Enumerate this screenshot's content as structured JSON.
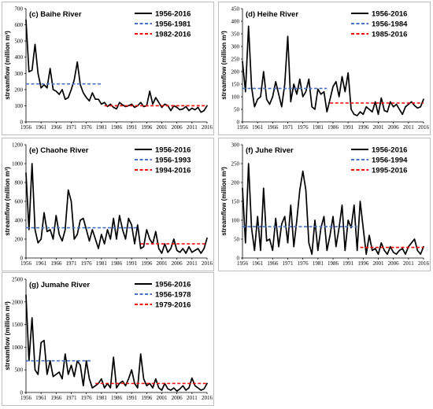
{
  "ylabel": "streamflow (million m³)",
  "chart_data": [
    {
      "type": "line",
      "title": "(c) Baihe River",
      "ylabel": "streamflow (million m³)",
      "ylim": [
        0,
        700
      ],
      "yticks": [
        0,
        100,
        200,
        300,
        400,
        500,
        600,
        700
      ],
      "xticks": [
        1956,
        1961,
        1966,
        1971,
        1976,
        1981,
        1986,
        1991,
        1996,
        2001,
        2006,
        2011,
        2016
      ],
      "series": [
        {
          "name": "1956-2016",
          "color": "#000000",
          "style": "solid",
          "x": [
            1956,
            1957,
            1958,
            1959,
            1960,
            1961,
            1962,
            1963,
            1964,
            1965,
            1966,
            1967,
            1968,
            1969,
            1970,
            1971,
            1972,
            1973,
            1974,
            1975,
            1976,
            1977,
            1978,
            1979,
            1980,
            1981,
            1982,
            1983,
            1984,
            1985,
            1986,
            1987,
            1988,
            1989,
            1990,
            1991,
            1992,
            1993,
            1994,
            1995,
            1996,
            1997,
            1998,
            1999,
            2000,
            2001,
            2002,
            2003,
            2004,
            2005,
            2006,
            2007,
            2008,
            2009,
            2010,
            2011,
            2012,
            2013,
            2014,
            2015,
            2016
          ],
          "y": [
            630,
            310,
            320,
            480,
            300,
            210,
            230,
            210,
            330,
            200,
            190,
            170,
            200,
            140,
            150,
            200,
            260,
            370,
            230,
            180,
            150,
            130,
            180,
            140,
            140,
            110,
            120,
            95,
            110,
            90,
            80,
            120,
            105,
            95,
            100,
            110,
            90,
            100,
            120,
            95,
            100,
            190,
            110,
            150,
            120,
            90,
            110,
            100,
            70,
            100,
            90,
            75,
            80,
            95,
            70,
            85,
            75,
            90,
            60,
            70,
            100
          ]
        },
        {
          "name": "1956-1981",
          "color": "#4472c4",
          "style": "dashed",
          "x": [
            1956,
            1981
          ],
          "y": [
            235,
            235
          ]
        },
        {
          "name": "1982-2016",
          "color": "#ff0000",
          "style": "dashed",
          "x": [
            1982,
            2016
          ],
          "y": [
            100,
            100
          ]
        }
      ]
    },
    {
      "type": "line",
      "title": "(d) Heihe River",
      "ylabel": "streamflow (million m³)",
      "ylim": [
        0,
        450
      ],
      "yticks": [
        0,
        50,
        100,
        150,
        200,
        250,
        300,
        350,
        400,
        450
      ],
      "xticks": [
        1956,
        1961,
        1966,
        1971,
        1976,
        1981,
        1986,
        1991,
        1996,
        2001,
        2006,
        2011,
        2016
      ],
      "series": [
        {
          "name": "1956-2016",
          "color": "#000000",
          "style": "solid",
          "x": [
            1956,
            1957,
            1958,
            1959,
            1960,
            1961,
            1962,
            1963,
            1964,
            1965,
            1966,
            1967,
            1968,
            1969,
            1970,
            1971,
            1972,
            1973,
            1974,
            1975,
            1976,
            1977,
            1978,
            1979,
            1980,
            1981,
            1982,
            1983,
            1984,
            1985,
            1986,
            1987,
            1988,
            1989,
            1990,
            1991,
            1992,
            1993,
            1994,
            1995,
            1996,
            1997,
            1998,
            1999,
            2000,
            2001,
            2002,
            2003,
            2004,
            2005,
            2006,
            2007,
            2008,
            2009,
            2010,
            2011,
            2012,
            2013,
            2014,
            2015,
            2016
          ],
          "y": [
            240,
            120,
            380,
            140,
            60,
            90,
            100,
            200,
            90,
            70,
            100,
            160,
            110,
            60,
            150,
            340,
            80,
            150,
            110,
            170,
            100,
            120,
            170,
            60,
            50,
            130,
            110,
            120,
            40,
            90,
            140,
            160,
            100,
            180,
            120,
            195,
            50,
            30,
            25,
            40,
            30,
            60,
            50,
            40,
            80,
            30,
            95,
            45,
            40,
            80,
            60,
            70,
            50,
            30,
            60,
            70,
            80,
            65,
            55,
            60,
            90
          ]
        },
        {
          "name": "1956-1984",
          "color": "#4472c4",
          "style": "dashed",
          "x": [
            1956,
            1984
          ],
          "y": [
            133,
            133
          ]
        },
        {
          "name": "1985-2016",
          "color": "#ff0000",
          "style": "dashed",
          "x": [
            1985,
            2016
          ],
          "y": [
            75,
            75
          ]
        }
      ]
    },
    {
      "type": "line",
      "title": "(e) Chaohe River",
      "ylabel": "streamflow (million m³)",
      "ylim": [
        0,
        1200
      ],
      "yticks": [
        0,
        200,
        400,
        600,
        800,
        1000,
        1200
      ],
      "xticks": [
        1956,
        1961,
        1966,
        1971,
        1976,
        1981,
        1986,
        1991,
        1996,
        2001,
        2006,
        2011,
        2016
      ],
      "series": [
        {
          "name": "1956-2016",
          "color": "#000000",
          "style": "solid",
          "x": [
            1956,
            1957,
            1958,
            1959,
            1960,
            1961,
            1962,
            1963,
            1964,
            1965,
            1966,
            1967,
            1968,
            1969,
            1970,
            1971,
            1972,
            1973,
            1974,
            1975,
            1976,
            1977,
            1978,
            1979,
            1980,
            1981,
            1982,
            1983,
            1984,
            1985,
            1986,
            1987,
            1988,
            1989,
            1990,
            1991,
            1992,
            1993,
            1994,
            1995,
            1996,
            1997,
            1998,
            1999,
            2000,
            2001,
            2002,
            2003,
            2004,
            2005,
            2006,
            2007,
            2008,
            2009,
            2010,
            2011,
            2012,
            2013,
            2014,
            2015,
            2016
          ],
          "y": [
            900,
            300,
            1000,
            300,
            160,
            200,
            480,
            280,
            300,
            200,
            450,
            250,
            180,
            300,
            720,
            600,
            200,
            250,
            400,
            420,
            300,
            180,
            300,
            200,
            100,
            250,
            150,
            300,
            200,
            420,
            200,
            450,
            300,
            200,
            420,
            350,
            150,
            350,
            100,
            120,
            300,
            200,
            150,
            280,
            100,
            50,
            150,
            60,
            100,
            200,
            80,
            60,
            100,
            50,
            120,
            60,
            80,
            100,
            50,
            100,
            210
          ]
        },
        {
          "name": "1956-1993",
          "color": "#4472c4",
          "style": "dashed",
          "x": [
            1956,
            1993
          ],
          "y": [
            320,
            320
          ]
        },
        {
          "name": "1994-2016",
          "color": "#ff0000",
          "style": "dashed",
          "x": [
            1994,
            2016
          ],
          "y": [
            150,
            150
          ]
        }
      ]
    },
    {
      "type": "line",
      "title": "(f) Juhe River",
      "ylabel": "streamflow (million m³)",
      "ylim": [
        0,
        300
      ],
      "yticks": [
        0,
        50,
        100,
        150,
        200,
        250,
        300
      ],
      "xticks": [
        1956,
        1961,
        1966,
        1971,
        1976,
        1981,
        1986,
        1991,
        1996,
        2001,
        2006,
        2011,
        2016
      ],
      "series": [
        {
          "name": "1956-2016",
          "color": "#000000",
          "style": "solid",
          "x": [
            1956,
            1957,
            1958,
            1959,
            1960,
            1961,
            1962,
            1963,
            1964,
            1965,
            1966,
            1967,
            1968,
            1969,
            1970,
            1971,
            1972,
            1973,
            1974,
            1975,
            1976,
            1977,
            1978,
            1979,
            1980,
            1981,
            1982,
            1983,
            1984,
            1985,
            1986,
            1987,
            1988,
            1989,
            1990,
            1991,
            1992,
            1993,
            1994,
            1995,
            1996,
            1997,
            1998,
            1999,
            2000,
            2001,
            2002,
            2003,
            2004,
            2005,
            2006,
            2007,
            2008,
            2009,
            2010,
            2011,
            2012,
            2013,
            2014,
            2015,
            2016
          ],
          "y": [
            185,
            40,
            250,
            80,
            20,
            110,
            20,
            185,
            45,
            50,
            20,
            105,
            30,
            90,
            110,
            40,
            140,
            30,
            100,
            180,
            230,
            180,
            40,
            10,
            100,
            20,
            80,
            110,
            20,
            60,
            110,
            30,
            80,
            140,
            20,
            100,
            80,
            140,
            20,
            150,
            80,
            10,
            60,
            20,
            25,
            10,
            40,
            20,
            10,
            30,
            15,
            10,
            20,
            25,
            10,
            30,
            40,
            50,
            20,
            10,
            30
          ]
        },
        {
          "name": "1956-1994",
          "color": "#4472c4",
          "style": "dashed",
          "x": [
            1956,
            1994
          ],
          "y": [
            83,
            83
          ]
        },
        {
          "name": "1995-2016",
          "color": "#ff0000",
          "style": "dashed",
          "x": [
            1995,
            2016
          ],
          "y": [
            28,
            28
          ]
        }
      ]
    },
    {
      "type": "line",
      "title": "(g) Jumahe River",
      "ylabel": "streamflow (million m³)",
      "ylim": [
        0,
        2500
      ],
      "yticks": [
        0,
        500,
        1000,
        1500,
        2000,
        2500
      ],
      "xticks": [
        1956,
        1961,
        1966,
        1971,
        1976,
        1981,
        1986,
        1991,
        1996,
        2001,
        2006,
        2011,
        2016
      ],
      "series": [
        {
          "name": "1956-2016",
          "color": "#000000",
          "style": "solid",
          "x": [
            1956,
            1957,
            1958,
            1959,
            1960,
            1961,
            1962,
            1963,
            1964,
            1965,
            1966,
            1967,
            1968,
            1969,
            1970,
            1971,
            1972,
            1973,
            1974,
            1975,
            1976,
            1977,
            1978,
            1979,
            1980,
            1981,
            1982,
            1983,
            1984,
            1985,
            1986,
            1987,
            1988,
            1989,
            1990,
            1991,
            1992,
            1993,
            1994,
            1995,
            1996,
            1997,
            1998,
            1999,
            2000,
            2001,
            2002,
            2003,
            2004,
            2005,
            2006,
            2007,
            2008,
            2009,
            2010,
            2011,
            2012,
            2013,
            2014,
            2015,
            2016
          ],
          "y": [
            2150,
            700,
            1650,
            500,
            400,
            1100,
            1150,
            400,
            700,
            350,
            400,
            450,
            300,
            850,
            400,
            600,
            350,
            700,
            600,
            150,
            700,
            300,
            100,
            150,
            200,
            300,
            100,
            200,
            100,
            780,
            100,
            200,
            250,
            150,
            300,
            500,
            200,
            100,
            850,
            300,
            150,
            200,
            100,
            300,
            100,
            50,
            200,
            80,
            50,
            100,
            30,
            80,
            150,
            50,
            100,
            320,
            150,
            100,
            50,
            80,
            200
          ]
        },
        {
          "name": "1956-1978",
          "color": "#4472c4",
          "style": "dashed",
          "x": [
            1956,
            1978
          ],
          "y": [
            700,
            700
          ]
        },
        {
          "name": "1979-2016",
          "color": "#ff0000",
          "style": "dashed",
          "x": [
            1979,
            2016
          ],
          "y": [
            200,
            200
          ]
        }
      ]
    }
  ]
}
